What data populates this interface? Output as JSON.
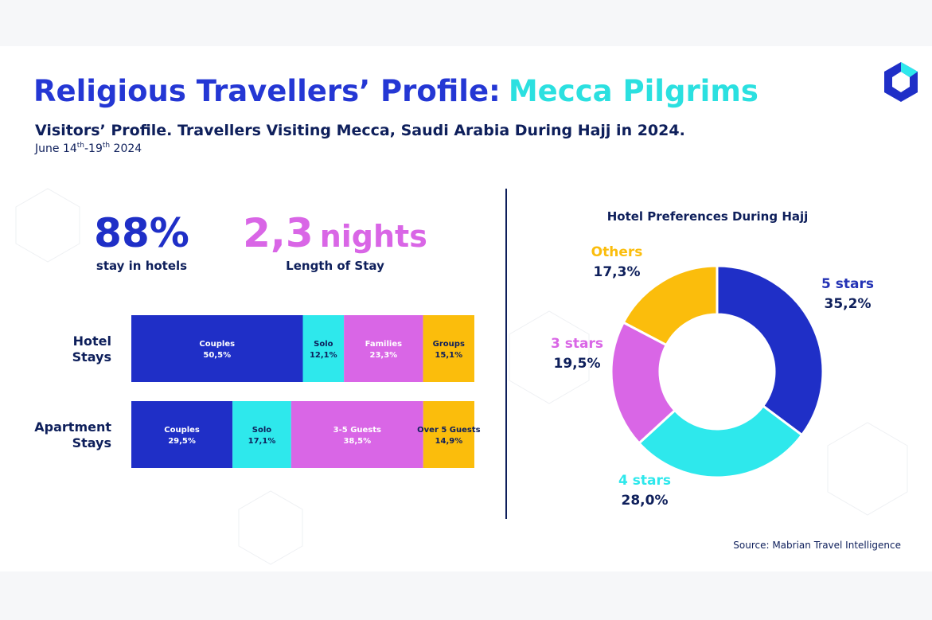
{
  "header": {
    "title_main": "Religious Travellers’ Profile:",
    "title_accent": "Mecca Pilgrims",
    "subtitle": "Visitors’ Profile. Travellers Visiting Mecca, Saudi Arabia During Hajj in 2024.",
    "date_parts": [
      "June 14",
      "th",
      "-19",
      "th",
      " 2024"
    ]
  },
  "stats": [
    {
      "value": "88%",
      "label": "stay in hotels"
    },
    {
      "value": "2,3",
      "unit": "nights",
      "label": "Length of Stay"
    }
  ],
  "source": "Source: Mabrian Travel Intelligence",
  "chart_data": [
    {
      "type": "stacked-bar",
      "rows": [
        {
          "category": "Hotel Stays",
          "labels": [
            "Couples",
            "Solo",
            "Families",
            "Groups"
          ],
          "colors": [
            "#1f2fc7",
            "#2ee8ec",
            "#d966e6",
            "#fbbd0c"
          ],
          "values": [
            50.5,
            12.1,
            23.3,
            15.1
          ],
          "value_labels": [
            "50,5%",
            "12,1%",
            "23,3%",
            "15,1%"
          ]
        },
        {
          "category": "Apartment Stays",
          "labels": [
            "Couples",
            "Solo",
            "3-5 Guests",
            "Over 5 Guests"
          ],
          "colors": [
            "#1f2fc7",
            "#2ee8ec",
            "#d966e6",
            "#fbbd0c"
          ],
          "values": [
            29.5,
            17.1,
            38.5,
            14.9
          ],
          "value_labels": [
            "29,5%",
            "17,1%",
            "38,5%",
            "14,9%"
          ]
        }
      ]
    },
    {
      "type": "pie",
      "title": "Hotel Preferences During Hajj",
      "categories": [
        "5 stars",
        "4 stars",
        "3 stars",
        "Others"
      ],
      "values": [
        35.2,
        28.0,
        19.5,
        17.3
      ],
      "value_labels": [
        "35,2%",
        "28,0%",
        "19,5%",
        "17,3%"
      ],
      "colors": [
        "#1f2fc7",
        "#2ee8ec",
        "#d966e6",
        "#fbbd0c"
      ],
      "donut": true
    }
  ]
}
